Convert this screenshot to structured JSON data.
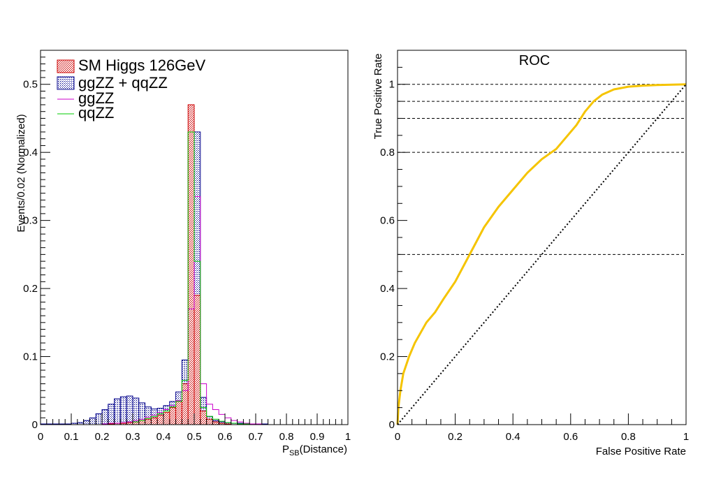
{
  "chart_data": [
    {
      "type": "bar",
      "title": "",
      "xlabel_main": "P",
      "xlabel_sub": "SB",
      "xlabel_rest": "(Distance)",
      "ylabel": "Events/0.02 (Normalized)",
      "xlim": [
        0,
        1
      ],
      "ylim": [
        0,
        0.55
      ],
      "bin_width": 0.02,
      "x_ticks": [
        "0",
        "0.1",
        "0.2",
        "0.3",
        "0.4",
        "0.5",
        "0.6",
        "0.7",
        "0.8",
        "0.9",
        "1"
      ],
      "y_ticks": [
        "0",
        "0.1",
        "0.2",
        "0.3",
        "0.4",
        "0.5"
      ],
      "legend_position": "top-left",
      "series": [
        {
          "name": "SM Higgs 126GeV",
          "color": "#cc0000",
          "style": "hatched-fill",
          "bin_starts": [
            0.22,
            0.24,
            0.26,
            0.28,
            0.3,
            0.32,
            0.34,
            0.36,
            0.38,
            0.4,
            0.42,
            0.44,
            0.46,
            0.48,
            0.5,
            0.52,
            0.54,
            0.56,
            0.58,
            0.6
          ],
          "values": [
            0.001,
            0.002,
            0.002,
            0.003,
            0.004,
            0.006,
            0.008,
            0.01,
            0.014,
            0.018,
            0.025,
            0.035,
            0.06,
            0.47,
            0.19,
            0.02,
            0.008,
            0.004,
            0.002,
            0.001
          ]
        },
        {
          "name": "ggZZ + qqZZ",
          "color": "#00008b",
          "style": "dotted-fill",
          "bin_starts": [
            0.0,
            0.02,
            0.04,
            0.06,
            0.08,
            0.1,
            0.12,
            0.14,
            0.16,
            0.18,
            0.2,
            0.22,
            0.24,
            0.26,
            0.28,
            0.3,
            0.32,
            0.34,
            0.36,
            0.38,
            0.4,
            0.42,
            0.44,
            0.46,
            0.48,
            0.5,
            0.52,
            0.54,
            0.56,
            0.58,
            0.6,
            0.62,
            0.64,
            0.66,
            0.68,
            0.7,
            0.72
          ],
          "values": [
            0.001,
            0.001,
            0.001,
            0.001,
            0.001,
            0.002,
            0.003,
            0.006,
            0.01,
            0.016,
            0.022,
            0.03,
            0.038,
            0.041,
            0.042,
            0.039,
            0.032,
            0.026,
            0.023,
            0.024,
            0.028,
            0.034,
            0.048,
            0.095,
            0.43,
            0.43,
            0.04,
            0.012,
            0.006,
            0.004,
            0.003,
            0.002,
            0.002,
            0.001,
            0.001,
            0.001,
            0.001
          ]
        },
        {
          "name": "ggZZ",
          "color": "#cc00cc",
          "style": "line",
          "bin_starts": [
            0.2,
            0.22,
            0.24,
            0.26,
            0.28,
            0.3,
            0.32,
            0.34,
            0.36,
            0.38,
            0.4,
            0.42,
            0.44,
            0.46,
            0.48,
            0.5,
            0.52,
            0.54,
            0.56,
            0.58,
            0.6,
            0.62,
            0.64,
            0.66,
            0.68,
            0.7
          ],
          "values": [
            0.001,
            0.002,
            0.002,
            0.003,
            0.004,
            0.006,
            0.008,
            0.011,
            0.014,
            0.018,
            0.022,
            0.028,
            0.035,
            0.05,
            0.17,
            0.335,
            0.06,
            0.03,
            0.022,
            0.015,
            0.01,
            0.006,
            0.004,
            0.002,
            0.001,
            0.001
          ]
        },
        {
          "name": "qqZZ",
          "color": "#00cc00",
          "style": "line",
          "bin_starts": [
            0.3,
            0.32,
            0.34,
            0.36,
            0.38,
            0.4,
            0.42,
            0.44,
            0.46,
            0.48,
            0.5,
            0.52,
            0.54,
            0.56,
            0.58,
            0.6,
            0.62,
            0.64,
            0.66
          ],
          "values": [
            0.004,
            0.006,
            0.009,
            0.012,
            0.016,
            0.02,
            0.026,
            0.034,
            0.065,
            0.43,
            0.24,
            0.025,
            0.012,
            0.008,
            0.005,
            0.003,
            0.002,
            0.001,
            0.001
          ]
        }
      ]
    },
    {
      "type": "line",
      "title": "ROC",
      "xlabel": "False Positive Rate",
      "ylabel": "True Positive Rate",
      "xlim": [
        0,
        1
      ],
      "ylim": [
        0,
        1.1
      ],
      "x_ticks": [
        "0",
        "0.2",
        "0.4",
        "0.6",
        "0.8",
        "1"
      ],
      "y_ticks": [
        "0",
        "0.2",
        "0.4",
        "0.6",
        "0.8",
        "1"
      ],
      "reference_lines_y": [
        0.5,
        0.8,
        0.9,
        0.95,
        1.0
      ],
      "series": [
        {
          "name": "",
          "color": "#f5c400",
          "x": [
            0,
            0.003,
            0.01,
            0.02,
            0.04,
            0.06,
            0.08,
            0.1,
            0.13,
            0.16,
            0.2,
            0.25,
            0.3,
            0.35,
            0.4,
            0.45,
            0.5,
            0.55,
            0.58,
            0.62,
            0.65,
            0.68,
            0.71,
            0.75,
            0.8,
            0.85,
            0.9,
            0.95,
            1.0
          ],
          "y": [
            0,
            0.05,
            0.1,
            0.15,
            0.2,
            0.24,
            0.27,
            0.3,
            0.33,
            0.37,
            0.42,
            0.5,
            0.58,
            0.64,
            0.69,
            0.74,
            0.78,
            0.81,
            0.84,
            0.88,
            0.92,
            0.95,
            0.97,
            0.985,
            0.993,
            0.996,
            0.998,
            0.999,
            1.0
          ]
        },
        {
          "name": "",
          "color": "#000000",
          "style": "dotted",
          "x": [
            0,
            1
          ],
          "y": [
            0,
            1
          ]
        }
      ]
    }
  ]
}
